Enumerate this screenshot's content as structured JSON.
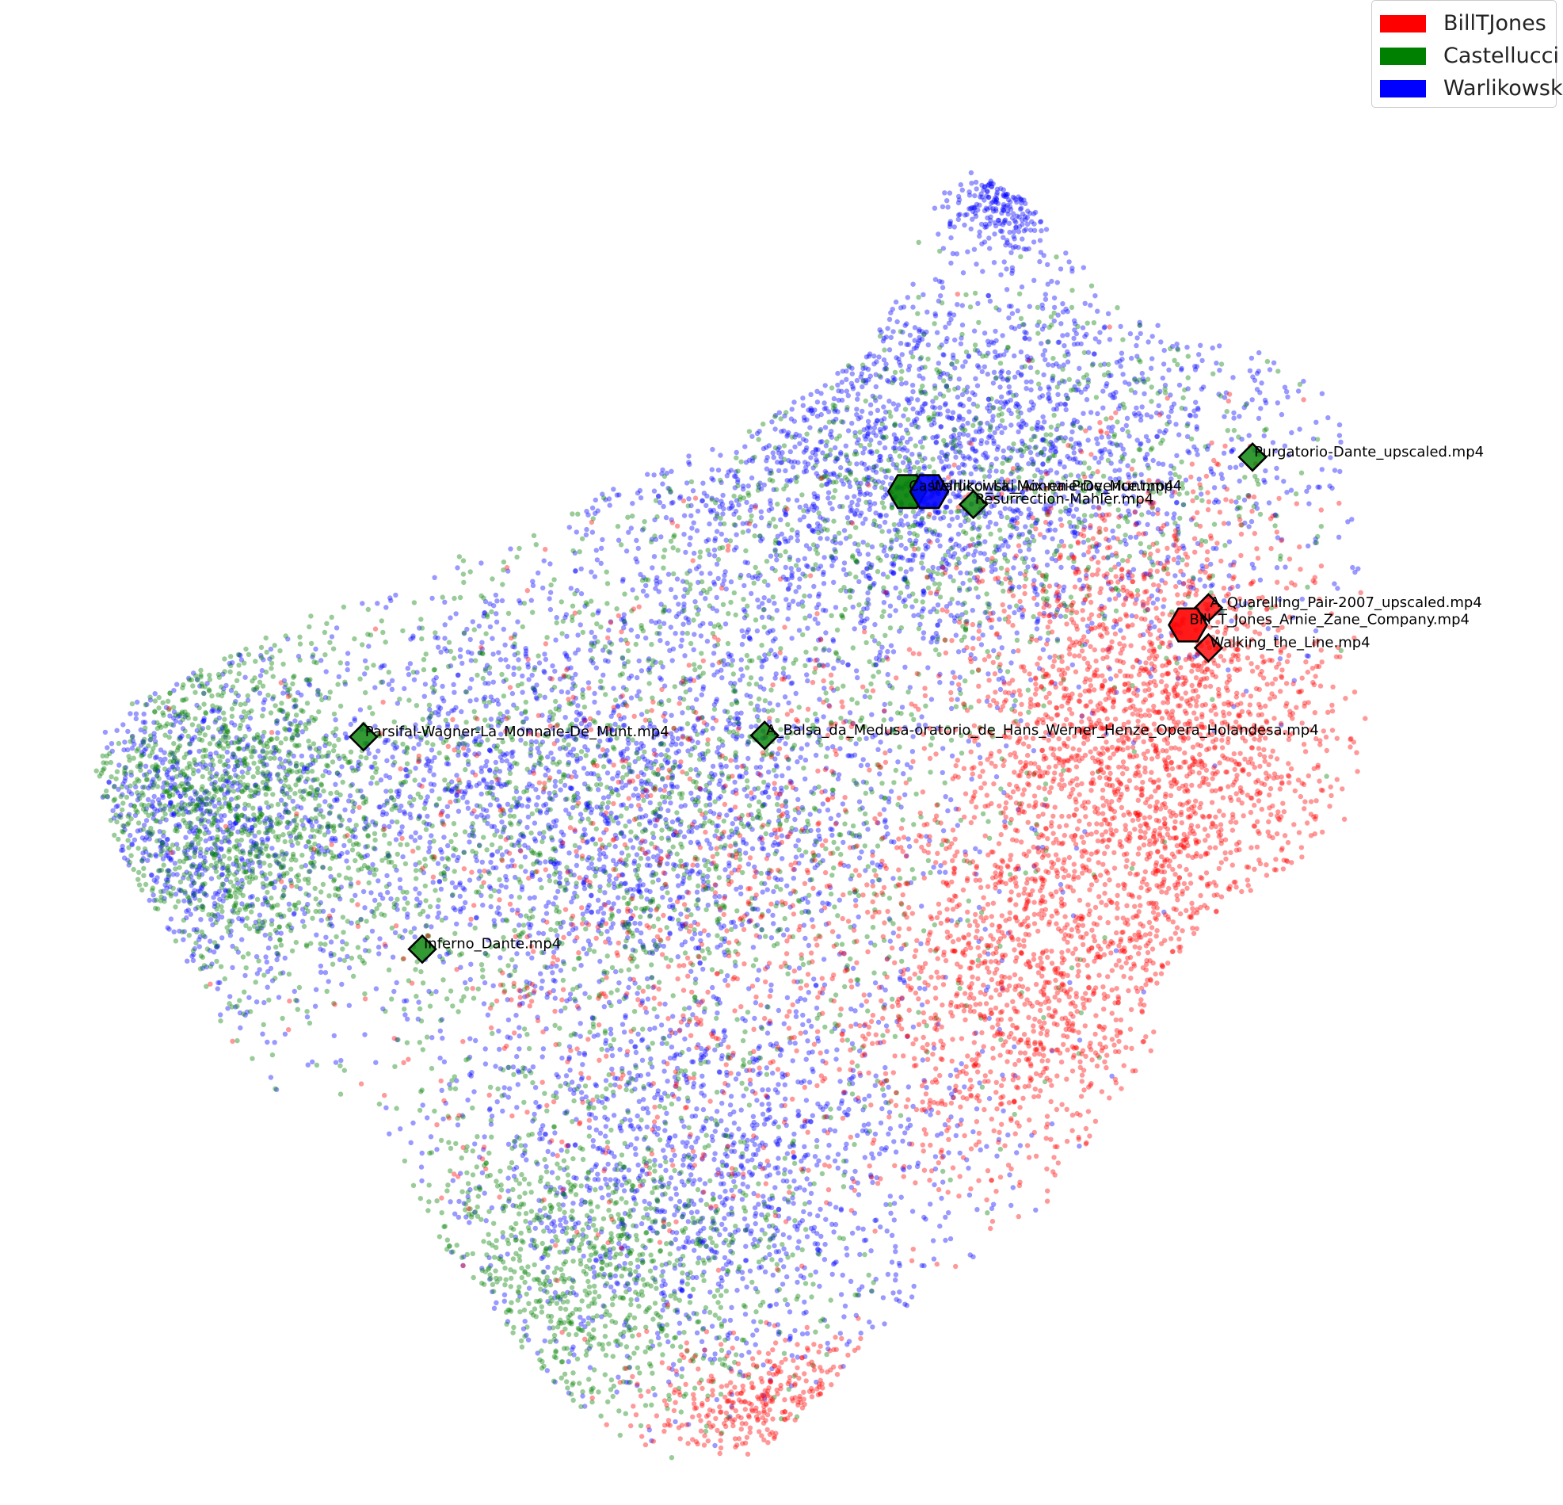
{
  "chart_data": {
    "type": "scatter",
    "title": "",
    "xlabel": "",
    "ylabel": "",
    "axes_visible": false,
    "grid": false,
    "legend_position": "top-right",
    "xlim": [
      0,
      100
    ],
    "ylim": [
      0,
      100
    ],
    "series": [
      {
        "name": "BillTJones",
        "color": "#ff0000",
        "point_alpha": 0.4
      },
      {
        "name": "Castellucci",
        "color": "#008000",
        "point_alpha": 0.4
      },
      {
        "name": "Warlikowski",
        "color": "#0000ff",
        "point_alpha": 0.4
      }
    ],
    "point_cloud": {
      "note_values": "x/y in data units of an unlabeled embedding; density regions per series",
      "outline": [
        [
          4,
          54
        ],
        [
          18,
          61
        ],
        [
          32,
          67
        ],
        [
          48,
          74
        ],
        [
          55,
          79
        ],
        [
          58,
          84
        ],
        [
          60,
          90
        ],
        [
          63,
          92
        ],
        [
          68,
          89
        ],
        [
          72,
          83
        ],
        [
          78,
          80
        ],
        [
          86,
          79
        ],
        [
          88,
          76
        ],
        [
          89,
          65
        ],
        [
          90,
          61
        ],
        [
          89,
          56
        ],
        [
          91,
          50
        ],
        [
          86,
          44
        ],
        [
          79,
          40
        ],
        [
          76,
          36
        ],
        [
          75,
          30
        ],
        [
          68,
          20
        ],
        [
          58,
          12
        ],
        [
          49,
          3
        ],
        [
          44,
          1
        ],
        [
          38,
          4
        ],
        [
          33,
          9
        ],
        [
          27,
          17
        ],
        [
          22,
          27
        ],
        [
          14,
          28
        ],
        [
          10,
          36
        ],
        [
          5,
          44
        ],
        [
          3,
          50
        ]
      ],
      "regions": [
        {
          "series": "Warlikowski",
          "cx": 60,
          "cy": 72,
          "rx": 24,
          "ry": 14,
          "count": 2400
        },
        {
          "series": "Warlikowski",
          "cx": 36,
          "cy": 48,
          "rx": 22,
          "ry": 14,
          "count": 2200
        },
        {
          "series": "Warlikowski",
          "cx": 10,
          "cy": 46,
          "rx": 8,
          "ry": 10,
          "count": 700
        },
        {
          "series": "Warlikowski",
          "cx": 45,
          "cy": 22,
          "rx": 18,
          "ry": 14,
          "count": 1500
        },
        {
          "series": "Warlikowski",
          "cx": 65,
          "cy": 90,
          "rx": 3,
          "ry": 3,
          "count": 180
        },
        {
          "series": "Warlikowski",
          "cx": 94,
          "cy": 42,
          "rx": 2.5,
          "ry": 2.5,
          "count": 120
        },
        {
          "series": "Castellucci",
          "cx": 12,
          "cy": 48,
          "rx": 10,
          "ry": 12,
          "count": 1200
        },
        {
          "series": "Castellucci",
          "cx": 40,
          "cy": 46,
          "rx": 24,
          "ry": 20,
          "count": 1600
        },
        {
          "series": "Castellucci",
          "cx": 36,
          "cy": 15,
          "rx": 14,
          "ry": 10,
          "count": 900
        },
        {
          "series": "Castellucci",
          "cx": 62,
          "cy": 70,
          "rx": 20,
          "ry": 12,
          "count": 800
        },
        {
          "series": "BillTJones",
          "cx": 75,
          "cy": 52,
          "rx": 12,
          "ry": 16,
          "count": 2200
        },
        {
          "series": "BillTJones",
          "cx": 67,
          "cy": 34,
          "rx": 12,
          "ry": 12,
          "count": 1000
        },
        {
          "series": "BillTJones",
          "cx": 45,
          "cy": 40,
          "rx": 22,
          "ry": 22,
          "count": 900
        },
        {
          "series": "BillTJones",
          "cx": 50,
          "cy": 6,
          "rx": 8,
          "ry": 4,
          "count": 300
        }
      ]
    },
    "highlighted": [
      {
        "label": "Purgatorio-Dante_upscaled.mp4",
        "series": "Castellucci",
        "marker": "diamond",
        "x": 82,
        "y": 72
      },
      {
        "label": "Resurrection-Mahler.mp4",
        "series": "Castellucci",
        "marker": "diamond",
        "x": 63,
        "y": 68.7
      },
      {
        "label": "Parsifal-Wagner-La_Monnaie-De_Munt.mp4",
        "series": "Castellucci",
        "marker": "diamond",
        "x": 21.5,
        "y": 52.5
      },
      {
        "label": "A_Balsa_da_Medusa-oratorio_de_Hans_Werner_Henze_Opera_Holandesa.mp4",
        "series": "Castellucci",
        "marker": "diamond",
        "x": 48.8,
        "y": 52.6
      },
      {
        "label": "Inferno_Dante.mp4",
        "series": "Castellucci",
        "marker": "diamond",
        "x": 25.5,
        "y": 37.7
      },
      {
        "label": "A_Quarelling_Pair-2007_upscaled.mp4",
        "series": "BillTJones",
        "marker": "diamond",
        "x": 79,
        "y": 61.5
      },
      {
        "label": "Walking_the_Line.mp4",
        "series": "BillTJones",
        "marker": "diamond",
        "x": 79,
        "y": 58.7
      },
      {
        "label": "Bill_T_Jones_Arnie_Zane_Company.mp4",
        "series": "BillTJones",
        "marker": "hexagon",
        "x": 77.6,
        "y": 60.3
      },
      {
        "label": "Castellucci_La_Monnaie-De_Munt.mp4",
        "series": "Castellucci",
        "marker": "hexagon",
        "x": 58.5,
        "y": 69.6
      },
      {
        "label": "Warlikowski_Aix-en-Provence.mp4",
        "series": "Warlikowski",
        "marker": "hexagon",
        "x": 60,
        "y": 69.6
      }
    ]
  },
  "legend": {
    "items": [
      {
        "label": "BillTJones",
        "color": "#ff0000"
      },
      {
        "label": "Castellucci",
        "color": "#008000"
      },
      {
        "label": "Warlikowski",
        "color": "#0000ff"
      }
    ]
  }
}
